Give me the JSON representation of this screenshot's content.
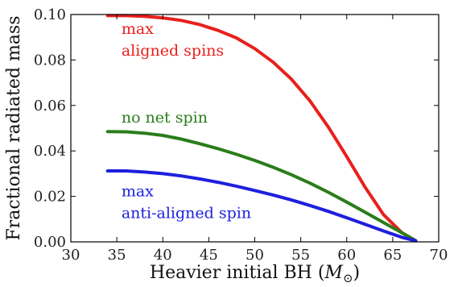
{
  "chart_data": {
    "type": "line",
    "title": "",
    "xlabel": "Heavier initial BH (",
    "xlabel_unit_symbol": "M",
    "xlabel_unit_subscript": "⊙",
    "xlabel_suffix": ")",
    "ylabel": "Fractional radiated mass",
    "xlim": [
      30,
      70
    ],
    "ylim": [
      0.0,
      0.1
    ],
    "xticks": [
      "30",
      "35",
      "40",
      "45",
      "50",
      "55",
      "60",
      "65",
      "70"
    ],
    "yticks": [
      "0.00",
      "0.02",
      "0.04",
      "0.06",
      "0.08",
      "0.10"
    ],
    "grid": false,
    "legend": "none (inline annotations)",
    "series": [
      {
        "color": "#e8201c",
        "x": [
          34,
          36,
          38,
          40,
          42,
          44,
          46,
          48,
          50,
          52,
          54,
          56,
          58,
          60,
          62,
          64,
          66,
          67.5
        ],
        "y": [
          0.0995,
          0.0995,
          0.0992,
          0.0985,
          0.0974,
          0.0956,
          0.093,
          0.0897,
          0.085,
          0.079,
          0.0715,
          0.062,
          0.0505,
          0.0375,
          0.024,
          0.012,
          0.004,
          0.0005
        ]
      },
      {
        "color": "#2a7d1a",
        "x": [
          34,
          36,
          38,
          40,
          42,
          44,
          46,
          48,
          50,
          52,
          54,
          56,
          58,
          60,
          62,
          64,
          66,
          67.5
        ],
        "y": [
          0.0485,
          0.0484,
          0.0478,
          0.0468,
          0.0452,
          0.0432,
          0.041,
          0.0385,
          0.0358,
          0.0328,
          0.0295,
          0.0258,
          0.0218,
          0.0175,
          0.013,
          0.0085,
          0.004,
          0.0005
        ]
      },
      {
        "color": "#1d1fde",
        "x": [
          34,
          36,
          38,
          40,
          42,
          44,
          46,
          48,
          50,
          52,
          54,
          56,
          58,
          60,
          62,
          64,
          66,
          67.5
        ],
        "y": [
          0.0312,
          0.0312,
          0.0307,
          0.03,
          0.029,
          0.0277,
          0.0262,
          0.0245,
          0.0226,
          0.0206,
          0.0184,
          0.016,
          0.0134,
          0.0106,
          0.0077,
          0.0048,
          0.002,
          0.0005
        ]
      }
    ],
    "annotations": [
      {
        "text": "max",
        "color": "#e8201c",
        "x": 35.5,
        "y": 0.0915
      },
      {
        "text": "aligned spins",
        "color": "#e8201c",
        "x": 35.5,
        "y": 0.082
      },
      {
        "text": "no net spin",
        "color": "#2a7d1a",
        "x": 35.5,
        "y": 0.0525
      },
      {
        "text": "max",
        "color": "#1d1fde",
        "x": 35.5,
        "y": 0.02
      },
      {
        "text": "anti-aligned spin",
        "color": "#1d1fde",
        "x": 35.5,
        "y": 0.0105
      }
    ]
  }
}
